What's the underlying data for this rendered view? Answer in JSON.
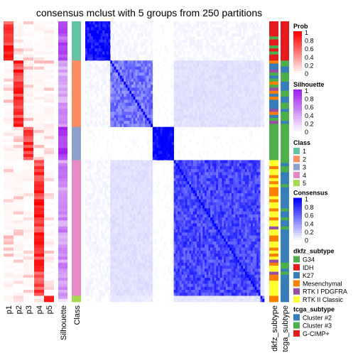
{
  "chart_data": {
    "type": "heatmap",
    "title": "consensus mclust with 5 groups from 250 partitions",
    "n_samples": 93,
    "prob_columns": [
      "p1",
      "p2",
      "p3",
      "p4",
      "p5"
    ],
    "column_labels": [
      "Silhouette",
      "Class",
      "dkfz_subtype",
      "tcga_subtype"
    ],
    "groups": [
      {
        "class": 1,
        "size": 13
      },
      {
        "class": 2,
        "size": 22
      },
      {
        "class": 3,
        "size": 11
      },
      {
        "class": 4,
        "size": 45
      },
      {
        "class": 5,
        "size": 2
      }
    ],
    "within_group_consensus": [
      0.92,
      0.55,
      1.0,
      0.72,
      0.6
    ],
    "between_group_consensus": [
      [
        1,
        0.03,
        0,
        0.03,
        0.02
      ],
      [
        0.03,
        1,
        0,
        0.12,
        0.08
      ],
      [
        0,
        0,
        1,
        0,
        0
      ],
      [
        0.03,
        0.12,
        0,
        1,
        0.1
      ],
      [
        0.02,
        0.08,
        0,
        0.1,
        1
      ]
    ],
    "legends": [
      {
        "title": "Prob",
        "type": "gradient",
        "ticks": [
          "1",
          "0.8",
          "0.6",
          "0.4",
          "0.2",
          "0"
        ],
        "color_low": "#ffffff",
        "color_high": "#ff0000"
      },
      {
        "title": "Silhouette",
        "type": "gradient",
        "ticks": [
          "1",
          "0.8",
          "0.6",
          "0.4",
          "0.2",
          "0"
        ],
        "color_low": "#ffffff",
        "color_high": "#a020f0"
      },
      {
        "title": "Class",
        "type": "discrete",
        "entries": [
          {
            "label": "1",
            "color": "#66c2a5"
          },
          {
            "label": "2",
            "color": "#fc8d62"
          },
          {
            "label": "3",
            "color": "#8da0cb"
          },
          {
            "label": "4",
            "color": "#e78ac3"
          },
          {
            "label": "5",
            "color": "#a6d854"
          }
        ]
      },
      {
        "title": "Consensus",
        "type": "gradient",
        "ticks": [
          "1",
          "0.8",
          "0.6",
          "0.4",
          "0.2",
          "0"
        ],
        "color_low": "#ffffff",
        "color_high": "#0000ff"
      },
      {
        "title": "dkfz_subtype",
        "type": "discrete",
        "entries": [
          {
            "label": "G34",
            "color": "#4daf4a"
          },
          {
            "label": "IDH",
            "color": "#e41a1c"
          },
          {
            "label": "K27",
            "color": "#377eb8"
          },
          {
            "label": "Mesenchymal",
            "color": "#ff7f00"
          },
          {
            "label": "RTK I PDGFRA",
            "color": "#984ea3"
          },
          {
            "label": "RTK II Classic",
            "color": "#ffff33"
          }
        ]
      },
      {
        "title": "tcga_subtype",
        "type": "discrete",
        "entries": [
          {
            "label": "Cluster #2",
            "color": "#377eb8"
          },
          {
            "label": "Cluster #3",
            "color": "#4daf4a"
          },
          {
            "label": "G-CIMP+",
            "color": "#e41a1c"
          }
        ]
      }
    ]
  }
}
